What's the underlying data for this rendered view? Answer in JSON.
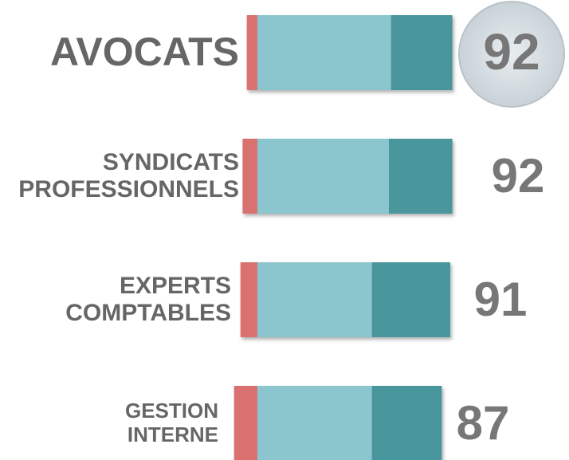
{
  "chart_data": {
    "type": "bar",
    "orientation": "horizontal",
    "stacked": true,
    "categories": [
      "AVOCATS",
      "SYNDICATS PROFESSIONNELS",
      "EXPERTS COMPTABLES",
      "GESTION INTERNE"
    ],
    "series": [
      {
        "color": "#d9716f",
        "values": [
          -5,
          -7,
          -8,
          -11
        ]
      },
      {
        "color": "#8bc6cf",
        "values": [
          63,
          62,
          54,
          54
        ]
      },
      {
        "color": "#4a979d",
        "values": [
          29,
          30,
          37,
          33
        ]
      }
    ],
    "totals": [
      92,
      92,
      91,
      87
    ]
  }
}
